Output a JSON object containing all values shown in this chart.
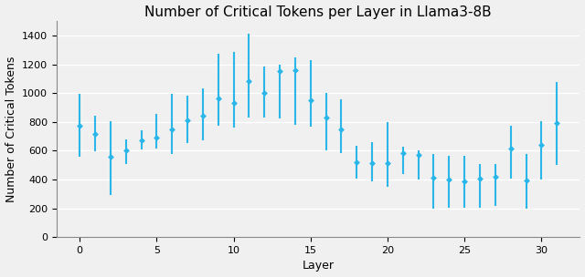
{
  "title": "Number of Critical Tokens per Layer in Llama3-8B",
  "xlabel": "Layer",
  "ylabel": "Number of Critical Tokens",
  "color": "#29b6e8",
  "ylim": [
    0,
    1500
  ],
  "yticks": [
    0,
    200,
    400,
    600,
    800,
    1000,
    1200,
    1400
  ],
  "xticks": [
    0,
    5,
    10,
    15,
    20,
    25,
    30
  ],
  "layers": [
    0,
    1,
    2,
    3,
    4,
    5,
    6,
    7,
    8,
    9,
    10,
    11,
    12,
    13,
    14,
    15,
    16,
    17,
    18,
    19,
    20,
    21,
    22,
    23,
    24,
    25,
    26,
    27,
    28,
    29,
    30,
    31
  ],
  "means": [
    775,
    715,
    560,
    600,
    670,
    690,
    750,
    810,
    840,
    960,
    930,
    1085,
    1000,
    1155,
    1160,
    950,
    830,
    750,
    520,
    515,
    515,
    585,
    570,
    415,
    400,
    390,
    405,
    420,
    615,
    395,
    640,
    795
  ],
  "lower_err": [
    215,
    120,
    265,
    90,
    60,
    75,
    170,
    155,
    170,
    190,
    170,
    255,
    170,
    330,
    380,
    185,
    230,
    165,
    115,
    130,
    165,
    150,
    170,
    215,
    195,
    185,
    200,
    205,
    210,
    195,
    240,
    295
  ],
  "upper_err": [
    220,
    130,
    245,
    80,
    70,
    165,
    245,
    175,
    195,
    310,
    355,
    330,
    185,
    45,
    90,
    280,
    170,
    205,
    115,
    145,
    285,
    45,
    30,
    165,
    165,
    175,
    100,
    85,
    160,
    180,
    165,
    280
  ],
  "figsize": [
    6.4,
    3.04
  ],
  "dpi": 100,
  "title_fontsize": 11,
  "label_fontsize": 9,
  "tick_fontsize": 8,
  "bg_color": "#f0f0f0",
  "grid_color": "#ffffff",
  "spine_color": "#888888"
}
